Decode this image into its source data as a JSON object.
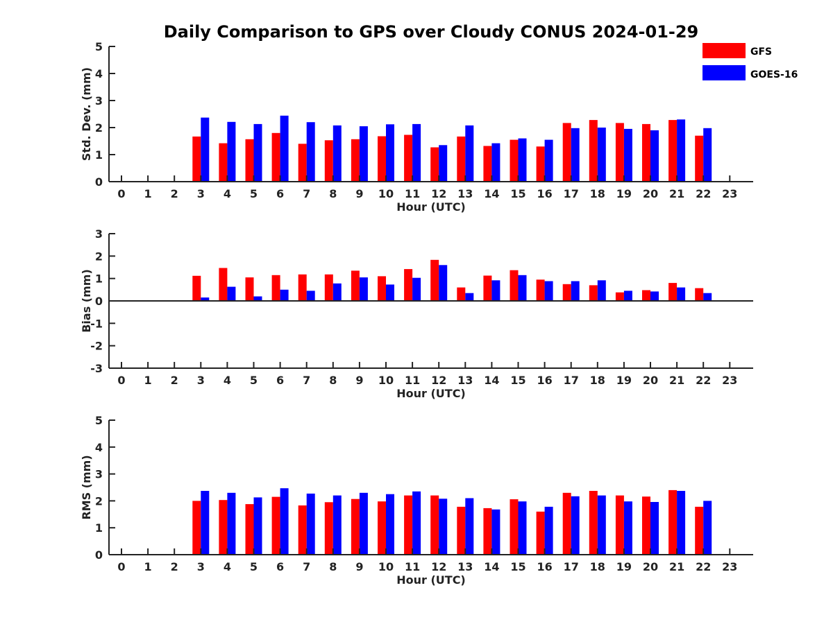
{
  "chart_data": {
    "type": "bar",
    "title": "Daily Comparison to GPS over Cloudy CONUS 2024-01-29",
    "categories": [
      "0",
      "1",
      "2",
      "3",
      "4",
      "5",
      "6",
      "7",
      "8",
      "9",
      "10",
      "11",
      "12",
      "13",
      "14",
      "15",
      "16",
      "17",
      "18",
      "19",
      "20",
      "21",
      "22",
      "23"
    ],
    "legend": {
      "position": "top-right",
      "entries": [
        {
          "name": "GFS",
          "color": "#ff0000"
        },
        {
          "name": "GOES-16",
          "color": "#0000ff"
        }
      ]
    },
    "panels": [
      {
        "ylabel": "Std. Dev. (mm)",
        "xlabel": "Hour (UTC)",
        "ylim": [
          0,
          5
        ],
        "yticks": [
          0,
          1,
          2,
          3,
          4,
          5
        ],
        "series": [
          {
            "name": "GFS",
            "color": "#ff0000",
            "values": [
              null,
              null,
              null,
              1.67,
              1.42,
              1.57,
              1.8,
              1.4,
              1.53,
              1.57,
              1.68,
              1.73,
              1.27,
              1.67,
              1.32,
              1.55,
              1.3,
              2.17,
              2.28,
              2.17,
              2.13,
              2.28,
              1.7,
              null
            ]
          },
          {
            "name": "GOES-16",
            "color": "#0000ff",
            "values": [
              null,
              null,
              null,
              2.37,
              2.21,
              2.13,
              2.44,
              2.2,
              2.08,
              2.05,
              2.12,
              2.13,
              1.35,
              2.08,
              1.42,
              1.6,
              1.55,
              1.98,
              2.0,
              1.95,
              1.9,
              2.3,
              1.98,
              null
            ]
          }
        ]
      },
      {
        "ylabel": "Bias (mm)",
        "xlabel": "Hour (UTC)",
        "ylim": [
          -3,
          3
        ],
        "yticks": [
          -3,
          -2,
          -1,
          0,
          1,
          2,
          3
        ],
        "series": [
          {
            "name": "GFS",
            "color": "#ff0000",
            "values": [
              null,
              null,
              null,
              1.12,
              1.47,
              1.05,
              1.15,
              1.18,
              1.18,
              1.35,
              1.1,
              1.42,
              1.83,
              0.6,
              1.13,
              1.37,
              0.95,
              0.75,
              0.7,
              0.38,
              0.48,
              0.8,
              0.57,
              null
            ]
          },
          {
            "name": "GOES-16",
            "color": "#0000ff",
            "values": [
              null,
              null,
              null,
              0.15,
              0.63,
              0.2,
              0.5,
              0.45,
              0.78,
              1.05,
              0.73,
              1.03,
              1.6,
              0.35,
              0.92,
              1.15,
              0.88,
              0.88,
              0.92,
              0.45,
              0.42,
              0.6,
              0.35,
              null
            ]
          }
        ]
      },
      {
        "ylabel": "RMS (mm)",
        "xlabel": "Hour (UTC)",
        "ylim": [
          0,
          5
        ],
        "yticks": [
          0,
          1,
          2,
          3,
          4,
          5
        ],
        "series": [
          {
            "name": "GFS",
            "color": "#ff0000",
            "values": [
              null,
              null,
              null,
              2.0,
              2.03,
              1.88,
              2.15,
              1.83,
              1.95,
              2.07,
              1.98,
              2.2,
              2.2,
              1.78,
              1.73,
              2.06,
              1.6,
              2.3,
              2.37,
              2.2,
              2.16,
              2.4,
              1.78,
              null
            ]
          },
          {
            "name": "GOES-16",
            "color": "#0000ff",
            "values": [
              null,
              null,
              null,
              2.37,
              2.3,
              2.13,
              2.47,
              2.27,
              2.2,
              2.3,
              2.25,
              2.35,
              2.08,
              2.1,
              1.68,
              1.98,
              1.78,
              2.17,
              2.2,
              1.98,
              1.96,
              2.37,
              2.0,
              null
            ]
          }
        ]
      }
    ]
  }
}
